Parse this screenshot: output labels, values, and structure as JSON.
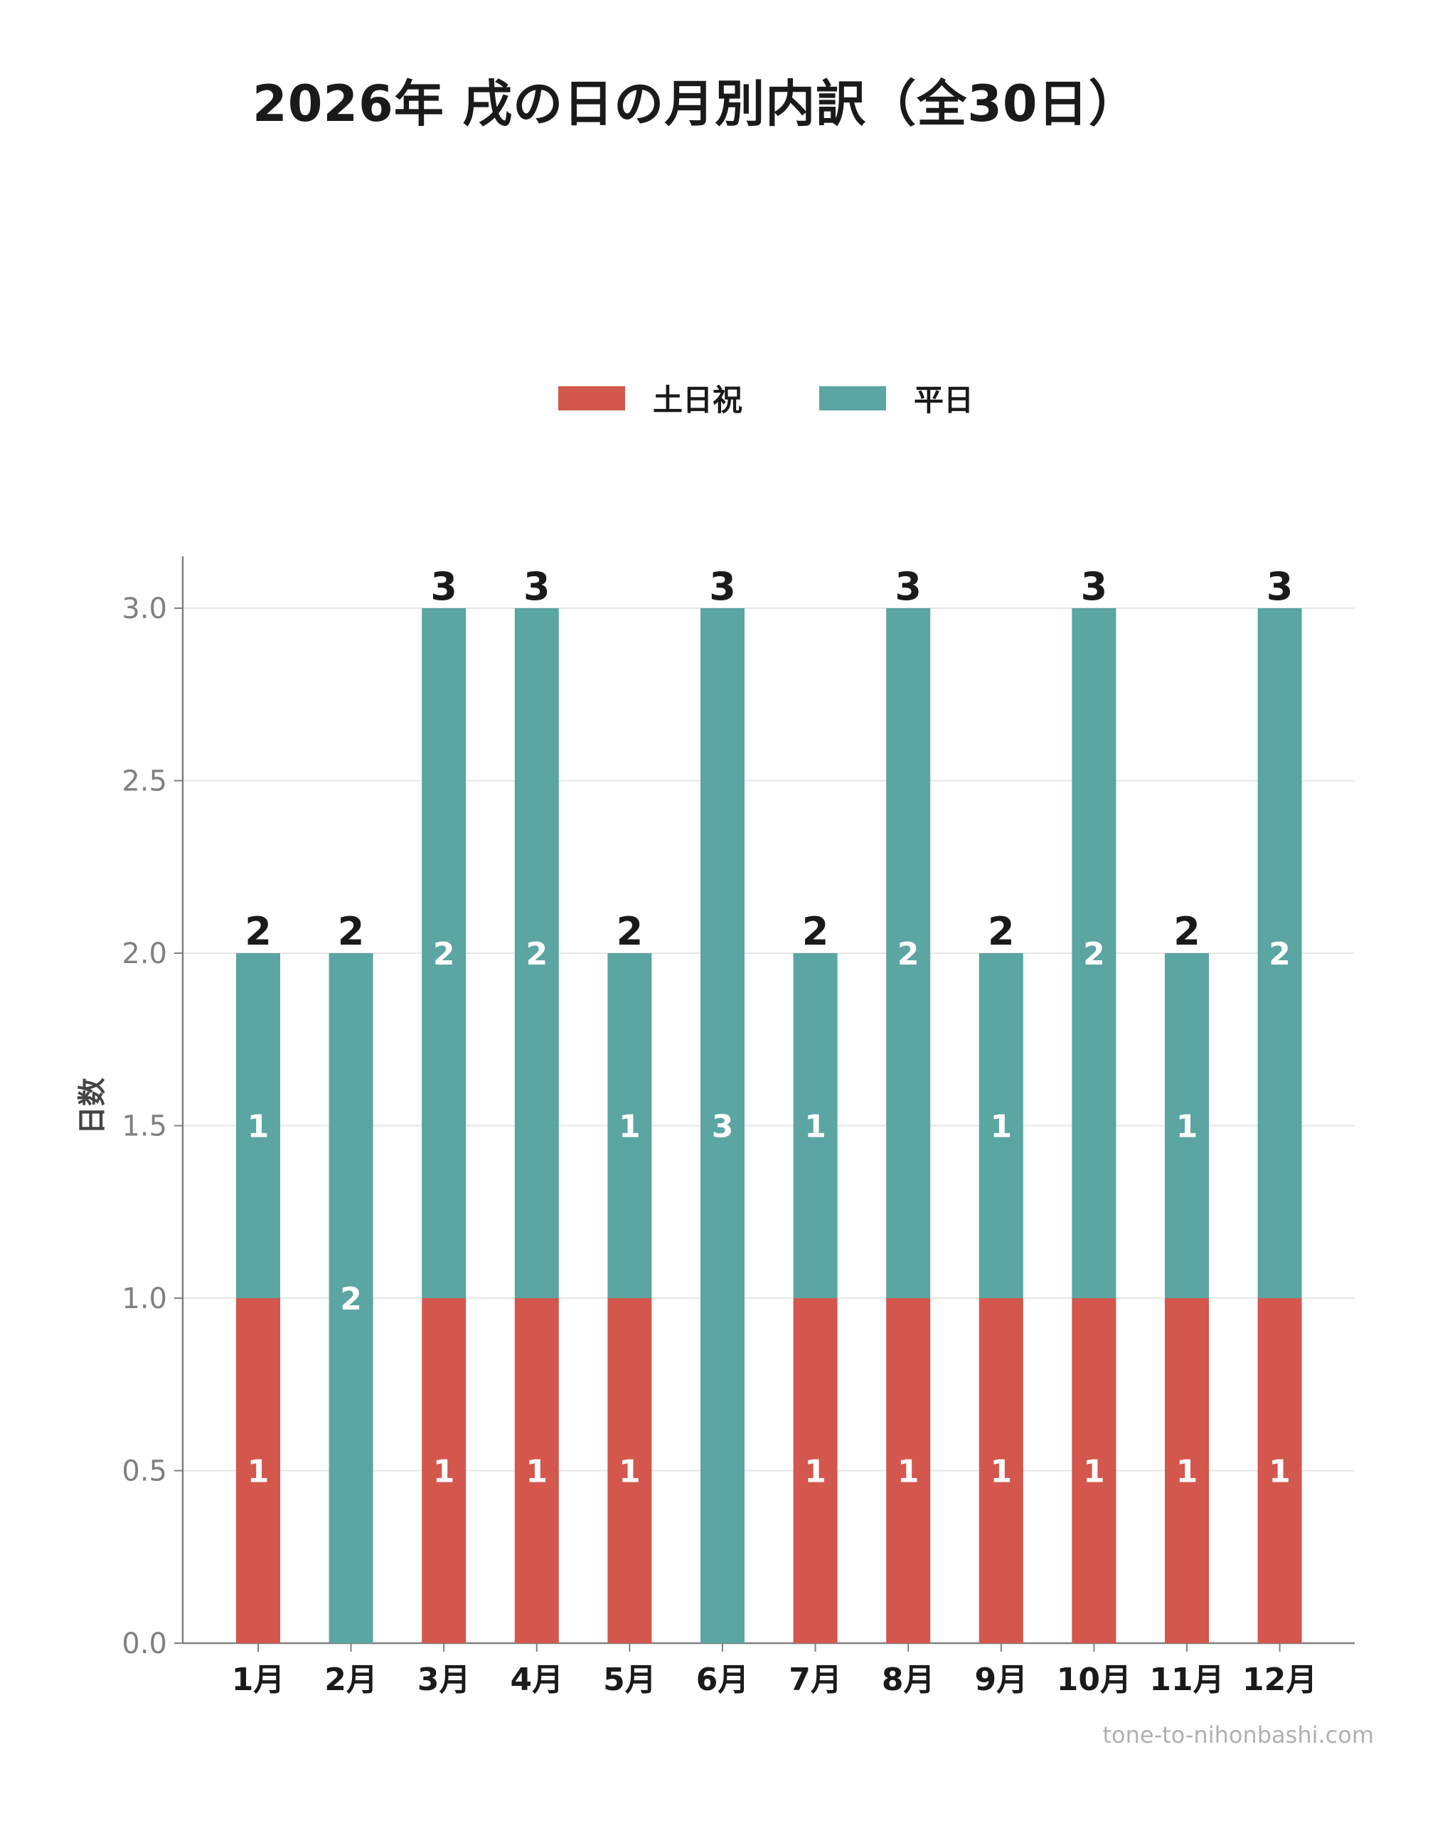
{
  "chart_data": {
    "type": "bar",
    "stacked": true,
    "title": "2026年 戌の日の月別内訳（全30日）",
    "ylabel": "日数",
    "xlabel": "",
    "ylim": [
      0,
      3.15
    ],
    "yticks": [
      "0.0",
      "0.5",
      "1.0",
      "1.5",
      "2.0",
      "2.5",
      "3.0"
    ],
    "ytick_values": [
      0,
      0.5,
      1.0,
      1.5,
      2.0,
      2.5,
      3.0
    ],
    "grid": "horizontal",
    "legend_position": "top-center",
    "categories": [
      "1月",
      "2月",
      "3月",
      "4月",
      "5月",
      "6月",
      "7月",
      "8月",
      "9月",
      "10月",
      "11月",
      "12月"
    ],
    "series": [
      {
        "name": "土日祝",
        "color": "#d3574c",
        "values": [
          1,
          0,
          1,
          1,
          1,
          0,
          1,
          1,
          1,
          1,
          1,
          1
        ]
      },
      {
        "name": "平日",
        "color": "#5ba5a3",
        "values": [
          1,
          2,
          2,
          2,
          1,
          3,
          1,
          2,
          1,
          2,
          1,
          2
        ]
      }
    ],
    "totals": [
      2,
      2,
      3,
      3,
      2,
      3,
      2,
      3,
      2,
      3,
      2,
      3
    ]
  },
  "watermark": "tone-to-nihonbashi.com"
}
